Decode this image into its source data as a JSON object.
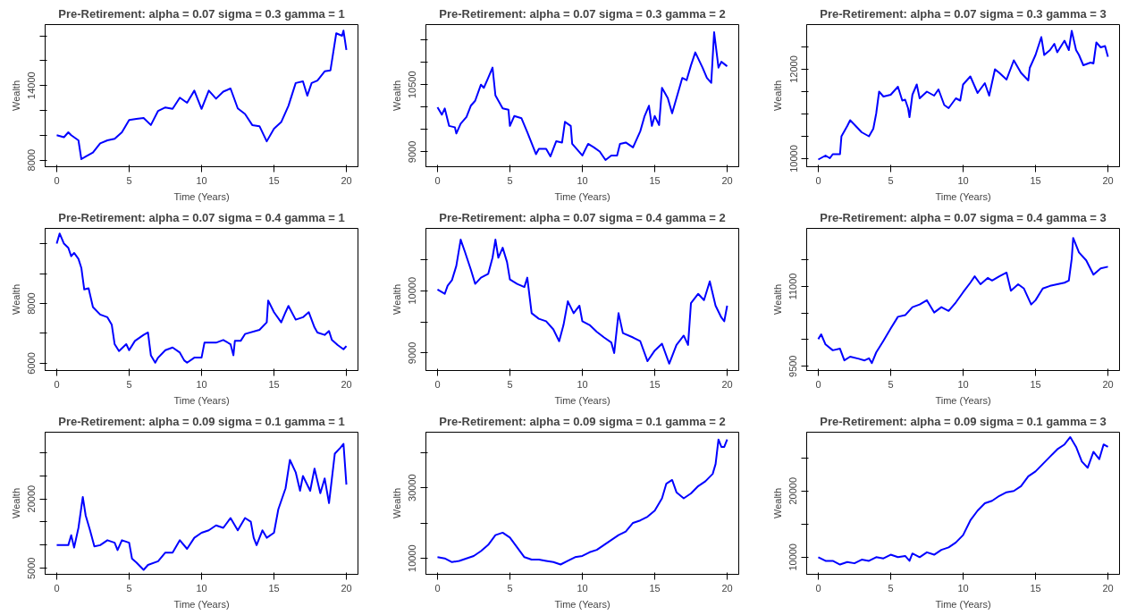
{
  "chart_data": [
    {
      "type": "line",
      "title": "Pre-Retirement: alpha = 0.07 sigma = 0.3 gamma = 1",
      "xlabel": "Time (Years)",
      "ylabel": "Wealth",
      "xlim": [
        -0.8,
        20.8
      ],
      "xticks": [
        0,
        5,
        10,
        15,
        20
      ],
      "ylim": [
        7470,
        18900
      ],
      "yticks": [
        8000,
        {
          "value": 10000,
          "label": null
        },
        {
          "value": 12000,
          "label": null
        },
        14000,
        {
          "value": 16000,
          "label": null
        },
        {
          "value": 18000,
          "label": null
        }
      ],
      "grid": false,
      "x": [
        0,
        0.5,
        0.8,
        1.0,
        1.5,
        1.7,
        2.0,
        2.5,
        3.0,
        3.5,
        4.0,
        4.5,
        5.0,
        5.5,
        6.0,
        6.5,
        7.0,
        7.5,
        8.0,
        8.5,
        9.0,
        9.5,
        10.0,
        10.5,
        11.0,
        11.5,
        12.0,
        12.5,
        13.0,
        13.5,
        14.0,
        14.5,
        15.0,
        15.5,
        16.0,
        16.5,
        17.0,
        17.3,
        17.6,
        18.0,
        18.5,
        18.9,
        19.3,
        19.7,
        19.8,
        20.0
      ],
      "series": [
        {
          "color": "#0000ff",
          "values": [
            10000,
            9840,
            10240,
            10000,
            9590,
            8080,
            8290,
            8610,
            9350,
            9590,
            9710,
            10240,
            11220,
            11310,
            11390,
            10820,
            11960,
            12240,
            12120,
            13020,
            12610,
            13590,
            12120,
            13590,
            12940,
            13510,
            13760,
            12160,
            11710,
            10820,
            10730,
            9510,
            10530,
            11060,
            12370,
            14200,
            14330,
            13180,
            14200,
            14400,
            15140,
            15220,
            18200,
            18000,
            18410,
            16860
          ]
        }
      ]
    },
    {
      "type": "line",
      "title": "Pre-Retirement: alpha = 0.07 sigma = 0.3 gamma = 2",
      "xlabel": "Time (Years)",
      "ylabel": "Wealth",
      "xlim": [
        -0.8,
        20.8
      ],
      "xticks": [
        0,
        5,
        10,
        15,
        20
      ],
      "ylim": [
        8670,
        11840
      ],
      "yticks": [
        9000,
        {
          "value": 9500,
          "label": null
        },
        {
          "value": 10000,
          "label": null
        },
        10500,
        {
          "value": 11000,
          "label": null
        },
        {
          "value": 11500,
          "label": null
        }
      ],
      "grid": false,
      "x": [
        0,
        0.3,
        0.5,
        0.8,
        1.2,
        1.3,
        1.6,
        2.0,
        2.3,
        2.6,
        3.0,
        3.2,
        3.5,
        3.8,
        4.0,
        4.5,
        4.9,
        5.0,
        5.3,
        5.8,
        6.2,
        6.8,
        7.0,
        7.5,
        7.8,
        8.2,
        8.6,
        8.8,
        9.2,
        9.3,
        10.0,
        10.4,
        10.8,
        11.2,
        11.6,
        12.0,
        12.4,
        12.6,
        13.0,
        13.5,
        14.0,
        14.3,
        14.6,
        14.8,
        15.0,
        15.3,
        15.5,
        15.9,
        16.2,
        16.5,
        16.9,
        17.2,
        17.5,
        17.8,
        18.3,
        18.6,
        18.9,
        19.1,
        19.4,
        19.6,
        20.0
      ],
      "series": [
        {
          "color": "#0000ff",
          "values": [
            9995,
            9830,
            9970,
            9580,
            9550,
            9410,
            9630,
            9780,
            10030,
            10140,
            10500,
            10430,
            10650,
            10880,
            10260,
            9970,
            9940,
            9580,
            9800,
            9750,
            9440,
            8950,
            9070,
            9070,
            8900,
            9240,
            9210,
            9670,
            9580,
            9180,
            8920,
            9180,
            9100,
            9010,
            8820,
            8920,
            8920,
            9180,
            9210,
            9100,
            9460,
            9800,
            10030,
            9580,
            9800,
            9600,
            10430,
            10200,
            9860,
            10200,
            10650,
            10600,
            10930,
            11220,
            10880,
            10650,
            10540,
            11670,
            10880,
            11010,
            10910
          ]
        }
      ]
    },
    {
      "type": "line",
      "title": "Pre-Retirement: alpha = 0.07 sigma = 0.3 gamma = 3",
      "xlabel": "Time (Years)",
      "ylabel": "Wealth",
      "xlim": [
        -0.8,
        20.8
      ],
      "xticks": [
        0,
        5,
        10,
        15,
        20
      ],
      "ylim": [
        9820,
        13000
      ],
      "yticks": [
        10000,
        {
          "value": 10500,
          "label": null
        },
        {
          "value": 11000,
          "label": null
        },
        {
          "value": 11500,
          "label": null
        },
        12000,
        {
          "value": 12500,
          "label": null
        }
      ],
      "grid": false,
      "x": [
        0,
        0.5,
        0.8,
        1.0,
        1.5,
        1.6,
        2.0,
        2.2,
        2.5,
        3.0,
        3.5,
        3.8,
        4.0,
        4.2,
        4.5,
        5.0,
        5.5,
        5.8,
        6.0,
        6.2,
        6.3,
        6.5,
        6.8,
        7.0,
        7.5,
        8.0,
        8.3,
        8.7,
        9.0,
        9.5,
        9.8,
        10.0,
        10.5,
        11.0,
        11.5,
        11.8,
        12.2,
        12.5,
        13.0,
        13.5,
        14.0,
        14.5,
        14.6,
        15.0,
        15.4,
        15.6,
        16.0,
        16.3,
        16.5,
        17.0,
        17.3,
        17.5,
        17.8,
        18.0,
        18.3,
        18.8,
        19.0,
        19.2,
        19.5,
        19.8,
        20.0
      ],
      "series": [
        {
          "color": "#0000ff",
          "values": [
            9980,
            10070,
            10010,
            10100,
            10100,
            10500,
            10730,
            10860,
            10760,
            10590,
            10500,
            10670,
            11010,
            11500,
            11390,
            11430,
            11610,
            11300,
            11320,
            11130,
            10930,
            11430,
            11660,
            11350,
            11500,
            11410,
            11550,
            11200,
            11130,
            11350,
            11300,
            11660,
            11840,
            11470,
            11690,
            11410,
            12000,
            11920,
            11770,
            12200,
            11920,
            11750,
            12030,
            12320,
            12720,
            12320,
            12430,
            12570,
            12380,
            12640,
            12430,
            12860,
            12430,
            12320,
            12090,
            12150,
            12130,
            12600,
            12490,
            12520,
            12280
          ]
        }
      ]
    },
    {
      "type": "line",
      "title": "Pre-Retirement: alpha = 0.07 sigma = 0.4 gamma = 1",
      "xlabel": "Time (Years)",
      "ylabel": "Wealth",
      "xlim": [
        -0.8,
        20.8
      ],
      "xticks": [
        0,
        5,
        10,
        15,
        20
      ],
      "ylim": [
        5760,
        10510
      ],
      "yticks": [
        6000,
        {
          "value": 7000,
          "label": null
        },
        8000,
        {
          "value": 9000,
          "label": null
        },
        {
          "value": 10000,
          "label": null
        }
      ],
      "grid": false,
      "x": [
        0,
        0.2,
        0.5,
        0.8,
        1.0,
        1.2,
        1.5,
        1.7,
        1.9,
        2.2,
        2.5,
        3.0,
        3.5,
        3.8,
        4.0,
        4.3,
        4.8,
        5.0,
        5.4,
        6.0,
        6.3,
        6.5,
        6.8,
        7.0,
        7.5,
        8.0,
        8.5,
        8.8,
        9.0,
        9.5,
        10.0,
        10.2,
        11.0,
        11.5,
        12.0,
        12.2,
        12.3,
        12.7,
        13.0,
        14.0,
        14.5,
        14.6,
        15.0,
        15.5,
        15.8,
        16.0,
        16.5,
        17.0,
        17.4,
        17.8,
        18.0,
        18.5,
        18.8,
        19.0,
        19.4,
        19.8,
        20.0
      ],
      "series": [
        {
          "color": "#0000ff",
          "values": [
            10000,
            10340,
            10000,
            9860,
            9580,
            9690,
            9490,
            9190,
            8470,
            8510,
            7880,
            7630,
            7540,
            7290,
            6640,
            6410,
            6640,
            6440,
            6750,
            6950,
            7030,
            6270,
            6020,
            6190,
            6440,
            6530,
            6360,
            6100,
            6020,
            6190,
            6190,
            6690,
            6690,
            6780,
            6640,
            6270,
            6750,
            6750,
            6980,
            7120,
            7370,
            8100,
            7710,
            7370,
            7710,
            7920,
            7460,
            7540,
            7710,
            7200,
            7030,
            6950,
            7080,
            6780,
            6610,
            6470,
            6580
          ]
        }
      ]
    },
    {
      "type": "line",
      "title": "Pre-Retirement: alpha = 0.07 sigma = 0.4 gamma = 2",
      "xlabel": "Time (Years)",
      "ylabel": "Wealth",
      "xlim": [
        -0.8,
        20.8
      ],
      "xticks": [
        0,
        5,
        10,
        15,
        20
      ],
      "ylim": [
        8720,
        11000
      ],
      "yticks": [
        9000,
        {
          "value": 9500,
          "label": null
        },
        10000,
        {
          "value": 10500,
          "label": null
        }
      ],
      "grid": false,
      "x": [
        0,
        0.5,
        0.7,
        1.0,
        1.3,
        1.6,
        1.9,
        2.3,
        2.6,
        3.0,
        3.5,
        3.8,
        4.0,
        4.2,
        4.5,
        4.8,
        5.0,
        5.5,
        6.0,
        6.2,
        6.5,
        7.0,
        7.5,
        8.0,
        8.4,
        8.7,
        9.0,
        9.4,
        9.8,
        10.0,
        10.5,
        11.0,
        11.5,
        12.0,
        12.2,
        12.5,
        12.8,
        13.5,
        14.0,
        14.5,
        15.0,
        15.5,
        16.0,
        16.5,
        17.0,
        17.3,
        17.5,
        18.0,
        18.4,
        18.8,
        19.2,
        19.6,
        19.8,
        20.0
      ],
      "series": [
        {
          "color": "#0000ff",
          "values": [
            10020,
            9950,
            10080,
            10170,
            10400,
            10820,
            10620,
            10340,
            10110,
            10210,
            10270,
            10530,
            10820,
            10530,
            10690,
            10460,
            10180,
            10110,
            10060,
            10210,
            9640,
            9550,
            9510,
            9380,
            9190,
            9450,
            9830,
            9640,
            9760,
            9510,
            9450,
            9340,
            9250,
            9170,
            9000,
            9640,
            9320,
            9250,
            9190,
            8870,
            9040,
            9150,
            8830,
            9130,
            9280,
            9130,
            9800,
            9950,
            9850,
            10150,
            9760,
            9570,
            9510,
            9760
          ]
        }
      ]
    },
    {
      "type": "line",
      "title": "Pre-Retirement: alpha = 0.07 sigma = 0.4 gamma = 3",
      "xlabel": "Time (Years)",
      "ylabel": "Wealth",
      "xlim": [
        -0.8,
        20.8
      ],
      "xticks": [
        0,
        5,
        10,
        15,
        20
      ],
      "ylim": [
        9420,
        12090
      ],
      "yticks": [
        9500,
        {
          "value": 10000,
          "label": null
        },
        {
          "value": 10500,
          "label": null
        },
        11000,
        {
          "value": 11500,
          "label": null
        }
      ],
      "grid": false,
      "x": [
        0,
        0.2,
        0.5,
        1.0,
        1.5,
        1.8,
        2.2,
        2.8,
        3.2,
        3.5,
        3.7,
        4.0,
        4.5,
        5.0,
        5.5,
        6.0,
        6.5,
        7.0,
        7.5,
        8.0,
        8.5,
        9.0,
        9.5,
        10.0,
        10.5,
        10.8,
        11.2,
        11.7,
        12.0,
        12.5,
        13.0,
        13.3,
        13.8,
        14.2,
        14.7,
        15.0,
        15.5,
        16.0,
        16.5,
        17.0,
        17.3,
        17.5,
        17.6,
        18.0,
        18.5,
        19.0,
        19.5,
        20.0
      ],
      "series": [
        {
          "color": "#0000ff",
          "values": [
            10010,
            10100,
            9910,
            9800,
            9830,
            9610,
            9680,
            9640,
            9610,
            9650,
            9560,
            9760,
            9980,
            10210,
            10430,
            10460,
            10610,
            10660,
            10740,
            10510,
            10610,
            10540,
            10700,
            10890,
            11070,
            11190,
            11040,
            11160,
            11110,
            11190,
            11260,
            10920,
            11040,
            10960,
            10660,
            10740,
            10960,
            11010,
            11040,
            11070,
            11110,
            11520,
            11910,
            11640,
            11490,
            11220,
            11340,
            11370
          ]
        }
      ]
    },
    {
      "type": "line",
      "title": "Pre-Retirement: alpha = 0.09 sigma = 0.1 gamma = 1",
      "xlabel": "Time (Years)",
      "ylabel": "Wealth",
      "xlim": [
        -0.8,
        20.8
      ],
      "xticks": [
        0,
        5,
        10,
        15,
        20
      ],
      "ylim": [
        3700,
        34400
      ],
      "yticks": [
        5000,
        {
          "value": 10000,
          "label": null
        },
        {
          "value": 15000,
          "label": null
        },
        20000,
        {
          "value": 25000,
          "label": null
        },
        {
          "value": 30000,
          "label": null
        }
      ],
      "grid": false,
      "x": [
        0,
        0.8,
        1.0,
        1.2,
        1.5,
        1.8,
        2.0,
        2.3,
        2.6,
        3.0,
        3.5,
        4.0,
        4.2,
        4.5,
        5.0,
        5.2,
        5.5,
        6.0,
        6.3,
        7.0,
        7.5,
        8.0,
        8.5,
        9.0,
        9.5,
        10.0,
        10.5,
        11.0,
        11.5,
        12.0,
        12.5,
        13.0,
        13.4,
        13.6,
        13.8,
        14.2,
        14.5,
        15.0,
        15.3,
        15.8,
        16.1,
        16.5,
        16.8,
        17.0,
        17.5,
        17.8,
        18.2,
        18.5,
        18.8,
        19.2,
        19.6,
        19.8,
        20.0
      ],
      "series": [
        {
          "color": "#0000ff",
          "values": [
            10000,
            10000,
            12140,
            9470,
            13740,
            20400,
            16400,
            13200,
            9730,
            10000,
            11070,
            10530,
            8930,
            11070,
            10530,
            7060,
            6260,
            4660,
            5730,
            6530,
            8400,
            8400,
            11070,
            9200,
            11600,
            12670,
            13200,
            14270,
            13740,
            15870,
            13200,
            15870,
            15070,
            11600,
            10000,
            13200,
            11600,
            12670,
            17740,
            22280,
            28420,
            25750,
            21750,
            24950,
            21750,
            26550,
            21210,
            24420,
            19080,
            29760,
            31090,
            31890,
            23080
          ]
        }
      ]
    },
    {
      "type": "line",
      "title": "Pre-Retirement: alpha = 0.09 sigma = 0.1 gamma = 2",
      "xlabel": "Time (Years)",
      "ylabel": "Wealth",
      "xlim": [
        -0.8,
        20.8
      ],
      "xticks": [
        0,
        5,
        10,
        15,
        20
      ],
      "ylim": [
        5490,
        45740
      ],
      "yticks": [
        10000,
        {
          "value": 20000,
          "label": null
        },
        30000,
        {
          "value": 40000,
          "label": null
        }
      ],
      "grid": false,
      "x": [
        0,
        0.5,
        1.0,
        1.5,
        2.0,
        2.5,
        3.0,
        3.5,
        4.0,
        4.5,
        5.0,
        5.5,
        6.0,
        6.5,
        7.0,
        7.5,
        8.0,
        8.5,
        9.0,
        9.5,
        10.0,
        10.5,
        11.0,
        11.5,
        12.0,
        12.5,
        13.0,
        13.5,
        14.0,
        14.5,
        15.0,
        15.5,
        15.8,
        16.2,
        16.5,
        17.0,
        17.5,
        18.0,
        18.5,
        19.0,
        19.2,
        19.4,
        19.6,
        19.8,
        20.0
      ],
      "series": [
        {
          "color": "#0000ff",
          "values": [
            10350,
            10000,
            8960,
            9300,
            10000,
            10690,
            12080,
            13820,
            16590,
            17290,
            15900,
            13120,
            10350,
            9650,
            9650,
            9300,
            8960,
            8270,
            9300,
            10350,
            10690,
            11740,
            12430,
            13820,
            15210,
            16590,
            17630,
            20060,
            20760,
            21800,
            23530,
            27000,
            31170,
            32210,
            28740,
            27000,
            28390,
            30470,
            31860,
            33940,
            36720,
            43660,
            41580,
            41580,
            43660
          ]
        }
      ]
    },
    {
      "type": "line",
      "title": "Pre-Retirement: alpha = 0.09 sigma = 0.1 gamma = 3",
      "xlabel": "Time (Years)",
      "ylabel": "Wealth",
      "xlim": [
        -0.8,
        20.8
      ],
      "xticks": [
        0,
        5,
        10,
        15,
        20
      ],
      "ylim": [
        7410,
        28870
      ],
      "yticks": [
        10000,
        {
          "value": 15000,
          "label": null
        },
        20000,
        {
          "value": 25000,
          "label": null
        }
      ],
      "grid": false,
      "x": [
        0,
        0.5,
        1.0,
        1.5,
        2.0,
        2.5,
        3.0,
        3.5,
        4.0,
        4.5,
        5.0,
        5.5,
        6.0,
        6.3,
        6.5,
        7.0,
        7.5,
        8.0,
        8.5,
        9.0,
        9.5,
        10.0,
        10.5,
        11.0,
        11.5,
        12.0,
        12.5,
        13.0,
        13.5,
        14.0,
        14.5,
        15.0,
        15.5,
        16.0,
        16.5,
        17.0,
        17.4,
        17.8,
        18.2,
        18.6,
        19.0,
        19.4,
        19.7,
        20.0
      ],
      "series": [
        {
          "color": "#0000ff",
          "values": [
            10000,
            9440,
            9440,
            8890,
            9260,
            9080,
            9630,
            9440,
            10000,
            9820,
            10370,
            10000,
            10190,
            9440,
            10560,
            10000,
            10740,
            10370,
            11110,
            11480,
            12220,
            13330,
            15550,
            17030,
            18140,
            18510,
            19250,
            19800,
            19990,
            20730,
            22210,
            22950,
            24060,
            25170,
            26280,
            27020,
            28130,
            26650,
            24430,
            23500,
            25910,
            24800,
            27020,
            26650
          ]
        }
      ]
    }
  ]
}
